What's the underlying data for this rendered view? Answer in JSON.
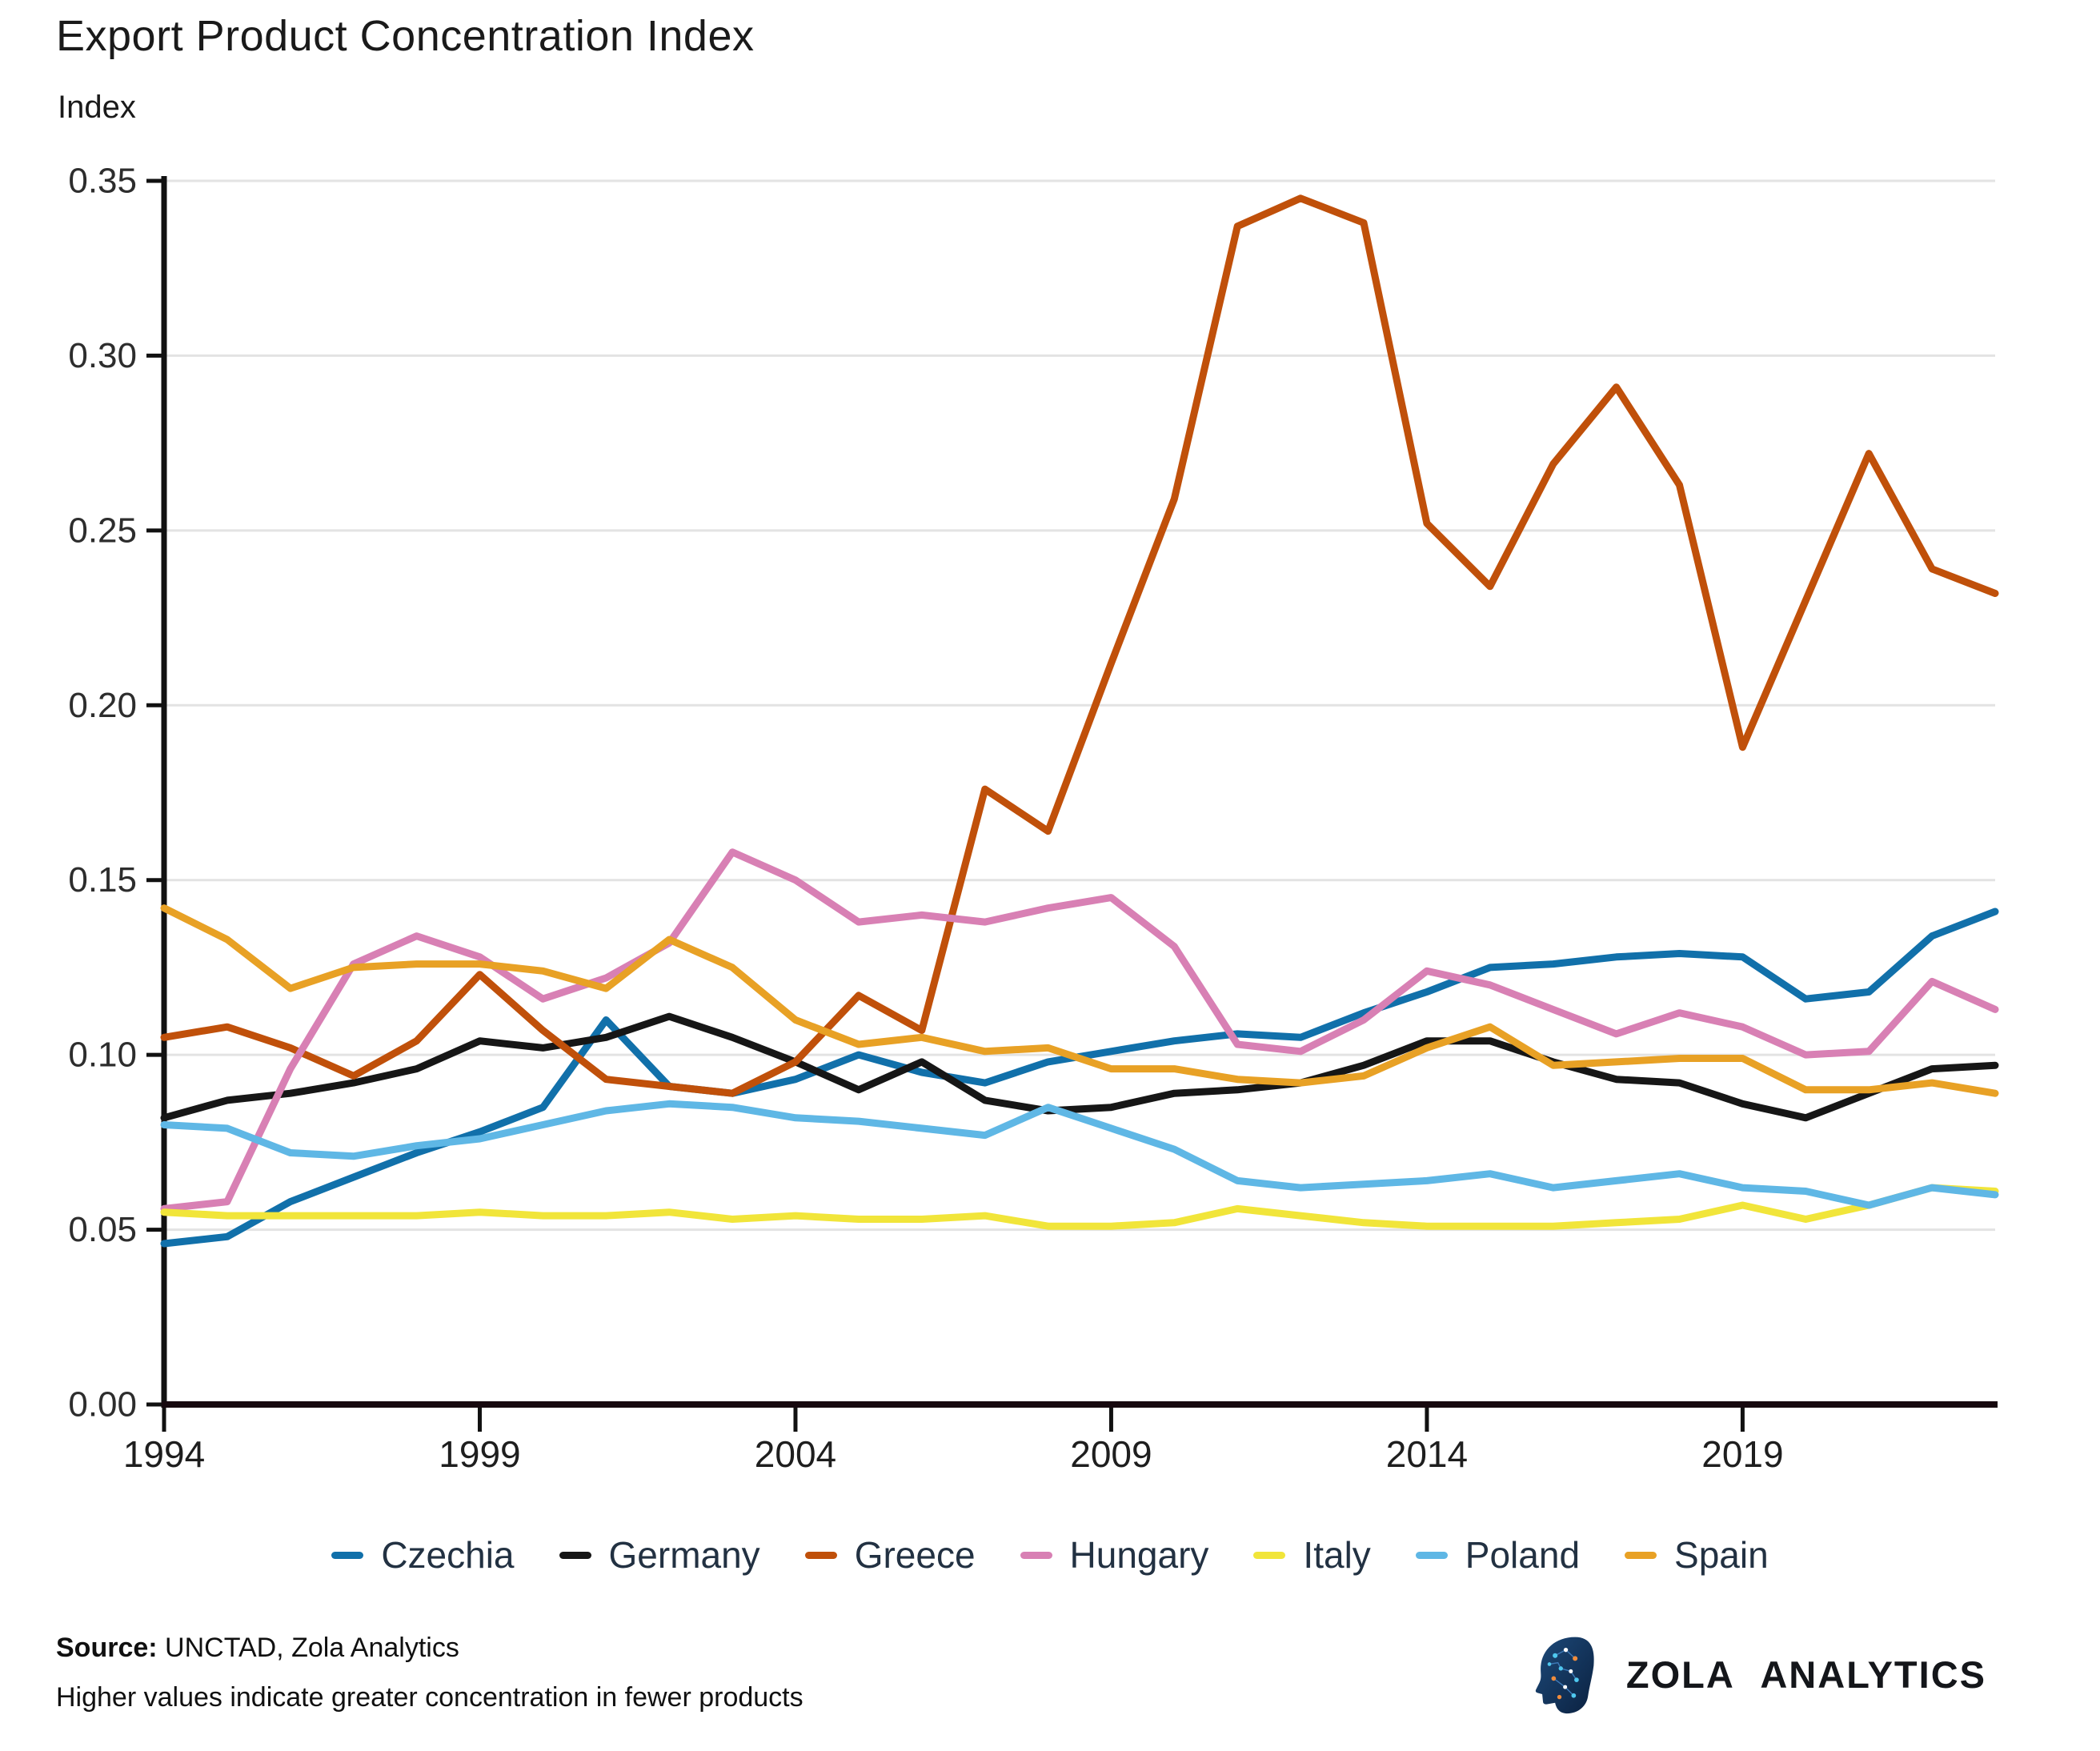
{
  "page": {
    "footer": {
      "source_label": "Source:",
      "source_text": " UNCTAD, Zola Analytics",
      "note": "Higher values indicate greater concentration in fewer products"
    },
    "logo_text": "ZOLA ANALYTICS"
  },
  "chart_data": {
    "type": "line",
    "title": "Export Product Concentration Index",
    "ylabel": "Index",
    "xlabel": "",
    "note": "Higher values indicate greater concentration in fewer products",
    "source": "UNCTAD, Zola Analytics",
    "x": [
      1994,
      1995,
      1996,
      1997,
      1998,
      1999,
      2000,
      2001,
      2002,
      2003,
      2004,
      2005,
      2006,
      2007,
      2008,
      2009,
      2010,
      2011,
      2012,
      2013,
      2014,
      2015,
      2016,
      2017,
      2018,
      2019,
      2020,
      2021,
      2022,
      2023
    ],
    "x_ticks": [
      1994,
      1999,
      2004,
      2009,
      2014,
      2019
    ],
    "ylim": [
      0,
      0.35
    ],
    "y_ticks": [
      0,
      0.05,
      0.1,
      0.15,
      0.2,
      0.25,
      0.3,
      0.35
    ],
    "grid": "horizontal",
    "legend_position": "bottom",
    "series": [
      {
        "name": "Czechia",
        "color": "#1170aa",
        "values": [
          0.046,
          0.048,
          0.058,
          0.065,
          0.072,
          0.078,
          0.085,
          0.11,
          0.091,
          0.089,
          0.093,
          0.1,
          0.095,
          0.092,
          0.098,
          0.101,
          0.104,
          0.106,
          0.105,
          0.112,
          0.118,
          0.125,
          0.126,
          0.128,
          0.129,
          0.128,
          0.116,
          0.118,
          0.134,
          0.141
        ]
      },
      {
        "name": "Germany",
        "color": "#161616",
        "values": [
          0.082,
          0.087,
          0.089,
          0.092,
          0.096,
          0.104,
          0.102,
          0.105,
          0.111,
          0.105,
          0.098,
          0.09,
          0.098,
          0.087,
          0.084,
          0.085,
          0.089,
          0.09,
          0.092,
          0.097,
          0.104,
          0.104,
          0.098,
          0.093,
          0.092,
          0.086,
          0.082,
          0.089,
          0.096,
          0.097
        ]
      },
      {
        "name": "Greece",
        "color": "#c0500a",
        "values": [
          0.105,
          0.108,
          0.102,
          0.094,
          0.104,
          0.123,
          0.107,
          0.093,
          0.091,
          0.089,
          0.098,
          0.117,
          0.107,
          0.176,
          0.164,
          0.212,
          0.259,
          0.337,
          0.345,
          0.338,
          0.252,
          0.234,
          0.269,
          0.291,
          0.263,
          0.188,
          0.23,
          0.272,
          0.239,
          0.232
        ]
      },
      {
        "name": "Hungary",
        "color": "#d880b4",
        "values": [
          0.056,
          0.058,
          0.096,
          0.126,
          0.134,
          0.128,
          0.116,
          0.122,
          0.132,
          0.158,
          0.15,
          0.138,
          0.14,
          0.138,
          0.142,
          0.145,
          0.131,
          0.103,
          0.101,
          0.11,
          0.124,
          0.12,
          0.113,
          0.106,
          0.112,
          0.108,
          0.1,
          0.101,
          0.121,
          0.113
        ]
      },
      {
        "name": "Italy",
        "color": "#f1e53a",
        "values": [
          0.055,
          0.054,
          0.054,
          0.054,
          0.054,
          0.055,
          0.054,
          0.054,
          0.055,
          0.053,
          0.054,
          0.053,
          0.053,
          0.054,
          0.051,
          0.051,
          0.052,
          0.056,
          0.054,
          0.052,
          0.051,
          0.051,
          0.051,
          0.052,
          0.053,
          0.057,
          0.053,
          0.057,
          0.062,
          0.061
        ]
      },
      {
        "name": "Poland",
        "color": "#5fb7e5",
        "values": [
          0.08,
          0.079,
          0.072,
          0.071,
          0.074,
          0.076,
          0.08,
          0.084,
          0.086,
          0.085,
          0.082,
          0.081,
          0.079,
          0.077,
          0.085,
          0.079,
          0.073,
          0.064,
          0.062,
          0.063,
          0.064,
          0.066,
          0.062,
          0.064,
          0.066,
          0.062,
          0.061,
          0.057,
          0.062,
          0.06
        ]
      },
      {
        "name": "Spain",
        "color": "#e8a125",
        "values": [
          0.142,
          0.133,
          0.119,
          0.125,
          0.126,
          0.126,
          0.124,
          0.119,
          0.133,
          0.125,
          0.11,
          0.103,
          0.105,
          0.101,
          0.102,
          0.096,
          0.096,
          0.093,
          0.092,
          0.094,
          0.102,
          0.108,
          0.097,
          0.098,
          0.099,
          0.099,
          0.09,
          0.09,
          0.092,
          0.089
        ]
      }
    ]
  }
}
